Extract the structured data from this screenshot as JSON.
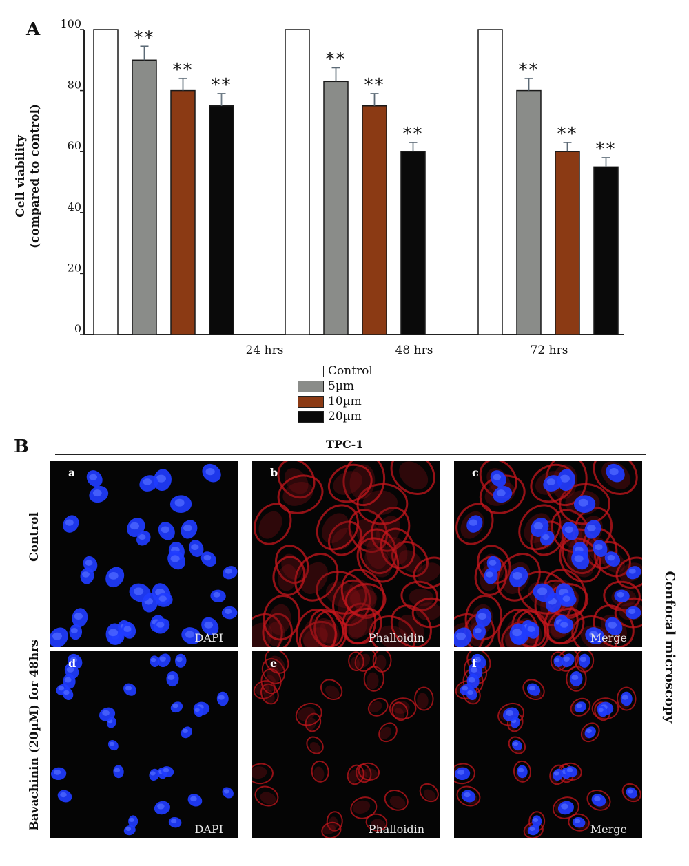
{
  "panel_a": {
    "letter": "A"
  },
  "panel_b": {
    "letter": "B",
    "header": "TPC-1",
    "side_label": "Confocal microscopy",
    "row_labels": [
      "Control",
      "Bavachinin (20µM) for 48hrs"
    ],
    "images": [
      {
        "letter": "a",
        "caption": "DAPI",
        "stain": "dapi"
      },
      {
        "letter": "b",
        "caption": "Phalloidin",
        "stain": "phalloidin"
      },
      {
        "letter": "c",
        "caption": "Merge",
        "stain": "merge"
      },
      {
        "letter": "d",
        "caption": "DAPI",
        "stain": "dapi"
      },
      {
        "letter": "e",
        "caption": "Phalloidin",
        "stain": "phalloidin"
      },
      {
        "letter": "f",
        "caption": "Merge",
        "stain": "merge"
      }
    ]
  },
  "chart_data": {
    "type": "bar",
    "ylabel": "Cell viability",
    "ylabel_sub": "(compared to control)",
    "ylim": [
      0,
      100
    ],
    "yticks": [
      0,
      20,
      40,
      60,
      80,
      100
    ],
    "categories": [
      "24 hrs",
      "48 hrs",
      "72 hrs"
    ],
    "series": [
      {
        "name": "Control",
        "color": "#ffffff",
        "values": [
          100,
          100,
          100
        ],
        "errors": [
          0,
          0,
          0
        ],
        "annotation": [
          "",
          "",
          ""
        ]
      },
      {
        "name": "5µm",
        "color": "#8a8c89",
        "values": [
          90,
          83,
          80
        ],
        "errors": [
          4.5,
          4.5,
          4
        ],
        "annotation": [
          "**",
          "**",
          "**"
        ]
      },
      {
        "name": "10µm",
        "color": "#8b3a14",
        "values": [
          80,
          75,
          60
        ],
        "errors": [
          4,
          4,
          3
        ],
        "annotation": [
          "**",
          "**",
          "**"
        ]
      },
      {
        "name": "20µm",
        "color": "#0a0a0a",
        "values": [
          75,
          60,
          55
        ],
        "errors": [
          4,
          3,
          3
        ],
        "annotation": [
          "**",
          "**",
          "**"
        ]
      }
    ]
  }
}
